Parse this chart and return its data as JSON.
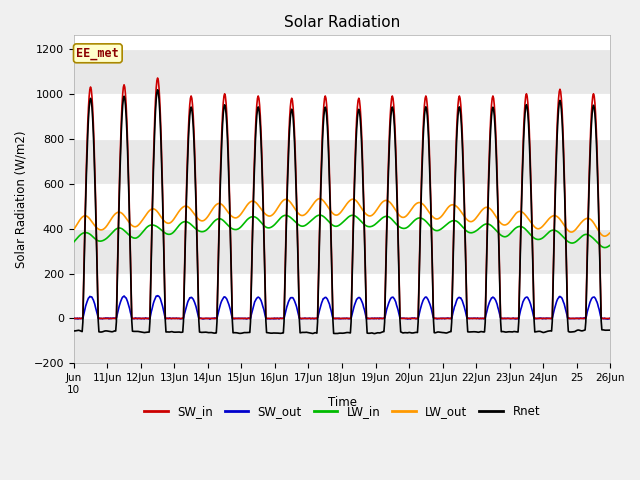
{
  "title": "Solar Radiation",
  "ylabel": "Solar Radiation (W/m2)",
  "xlabel": "Time",
  "ylim": [
    -200,
    1260
  ],
  "annotation": "EE_met",
  "series": {
    "SW_in": {
      "color": "#cc0000",
      "lw": 1.2
    },
    "SW_out": {
      "color": "#0000cc",
      "lw": 1.2
    },
    "LW_in": {
      "color": "#00bb00",
      "lw": 1.2
    },
    "LW_out": {
      "color": "#ff9900",
      "lw": 1.2
    },
    "Rnet": {
      "color": "#000000",
      "lw": 1.2
    }
  },
  "yticks": [
    -200,
    0,
    200,
    400,
    600,
    800,
    1000,
    1200
  ],
  "fig_bg": "#f0f0f0",
  "plot_bg": "#ffffff",
  "band_color": "#e8e8e8"
}
